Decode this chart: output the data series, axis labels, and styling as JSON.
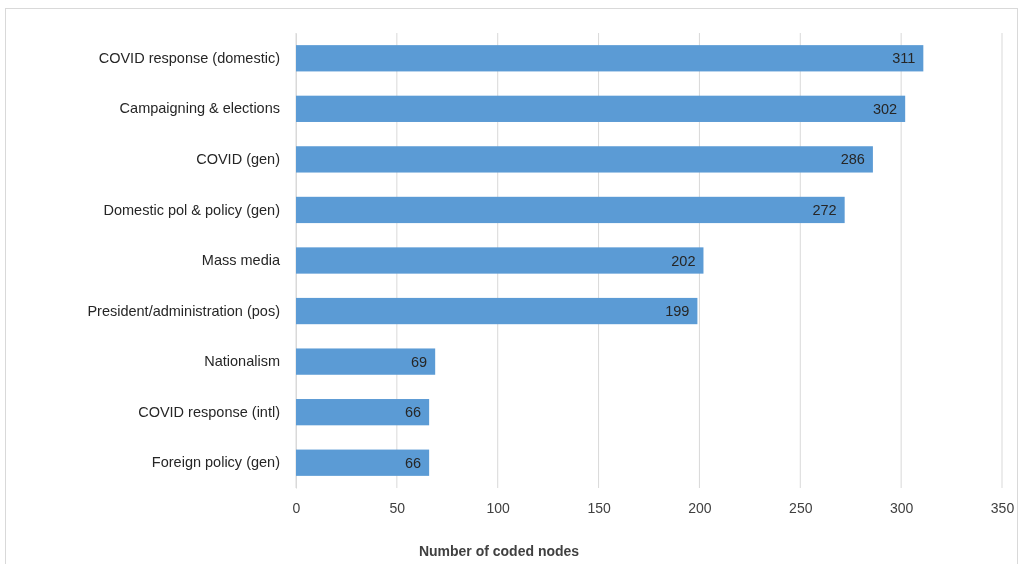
{
  "chart_data": {
    "type": "bar",
    "orientation": "horizontal",
    "xlabel": "Number of coded nodes",
    "categories": [
      "COVID response (domestic)",
      "Campaigning & elections",
      "COVID (gen)",
      "Domestic pol & policy (gen)",
      "Mass media",
      "President/administration (pos)",
      "Nationalism",
      "COVID response (intl)",
      "Foreign policy (gen)"
    ],
    "values": [
      311,
      302,
      286,
      272,
      202,
      199,
      69,
      66,
      66
    ],
    "color": "#5b9bd5",
    "xlim": [
      0,
      350
    ],
    "xticks": [
      0,
      50,
      100,
      150,
      200,
      250,
      300,
      350
    ],
    "grid": "x",
    "data_labels": true
  }
}
